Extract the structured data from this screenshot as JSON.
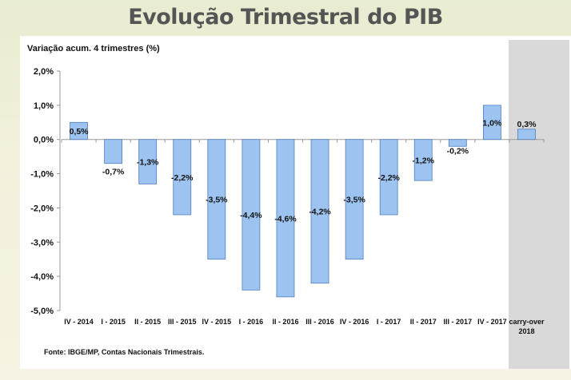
{
  "page_title": "Evolução Trimestral do PIB",
  "source": "Fonte: IBGE/MP, Contas Nacionais Trimestrais.",
  "chart_data": {
    "type": "bar",
    "title": "Evolução Trimestral do PIB",
    "ylabel": "Variação acum. 4 trimestres (%)",
    "xlabel": "",
    "categories": [
      "IV - 2014",
      "I - 2015",
      "II - 2015",
      "III - 2015",
      "IV - 2015",
      "I - 2016",
      "II - 2016",
      "III - 2016",
      "IV - 2016",
      "I - 2017",
      "II - 2017",
      "III - 2017",
      "IV - 2017",
      "carry-over 2018"
    ],
    "values": [
      0.5,
      -0.7,
      -1.3,
      -2.2,
      -3.5,
      -4.4,
      -4.6,
      -4.2,
      -3.5,
      -2.2,
      -1.2,
      -0.2,
      1.0,
      0.3
    ],
    "data_labels": [
      "0,5%",
      "-0,7%",
      "-1,3%",
      "-2,2%",
      "-3,5%",
      "-4,4%",
      "-4,6%",
      "-4,2%",
      "-3,5%",
      "-2,2%",
      "-1,2%",
      "-0,2%",
      "1,0%",
      "0,3%"
    ],
    "ylim": [
      -5,
      2
    ],
    "yticks": [
      2,
      1,
      0,
      -1,
      -2,
      -3,
      -4,
      -5
    ],
    "ytick_labels": [
      "2,0%",
      "1,0%",
      "0,0%",
      "-1,0%",
      "-2,0%",
      "-3,0%",
      "-4,0%",
      "-5,0%"
    ],
    "highlight_category": "carry-over 2018",
    "bar_color": "#9dc3f0",
    "bar_border": "#4f7fc0"
  }
}
